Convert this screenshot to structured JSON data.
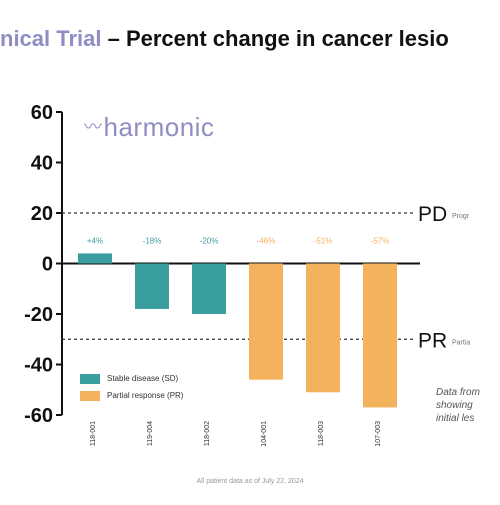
{
  "title": {
    "part1": "nical Trial",
    "part2": " – Percent change in cancer lesio"
  },
  "logo": {
    "text": "harmonic"
  },
  "legend": {
    "items": [
      {
        "label": "Stable disease (SD)",
        "color": "#3a9ea0"
      },
      {
        "label": "Partial response (PR)",
        "color": "#f4b25c"
      }
    ]
  },
  "reference_lines": [
    {
      "label": "PD",
      "note": "Progr",
      "value": 20
    },
    {
      "label": "PR",
      "note": "Partia",
      "value": -30
    }
  ],
  "right_note": [
    "Data from",
    "showing",
    "initial les"
  ],
  "footnote": "All patient data as of July 22, 2024",
  "chart_data": {
    "type": "bar",
    "title": "Percent change in cancer lesio",
    "ylim": [
      -60,
      60
    ],
    "yticks": [
      60,
      40,
      20,
      0,
      -20,
      -40,
      -60
    ],
    "grid": false,
    "legend_position": "bottom-left",
    "categories": [
      "118-001",
      "119-004",
      "118-002",
      "104-001",
      "118-003",
      "107-003"
    ],
    "values": [
      4,
      -18,
      -20,
      -46,
      -51,
      -57
    ],
    "data_labels": [
      "+4%",
      "-18%",
      "-20%",
      "-46%",
      "-51%",
      "-57%"
    ],
    "groups": [
      "SD",
      "SD",
      "SD",
      "PR",
      "PR",
      "PR"
    ],
    "colors": {
      "SD": "#3a9ea0",
      "PR": "#f4b25c"
    }
  }
}
